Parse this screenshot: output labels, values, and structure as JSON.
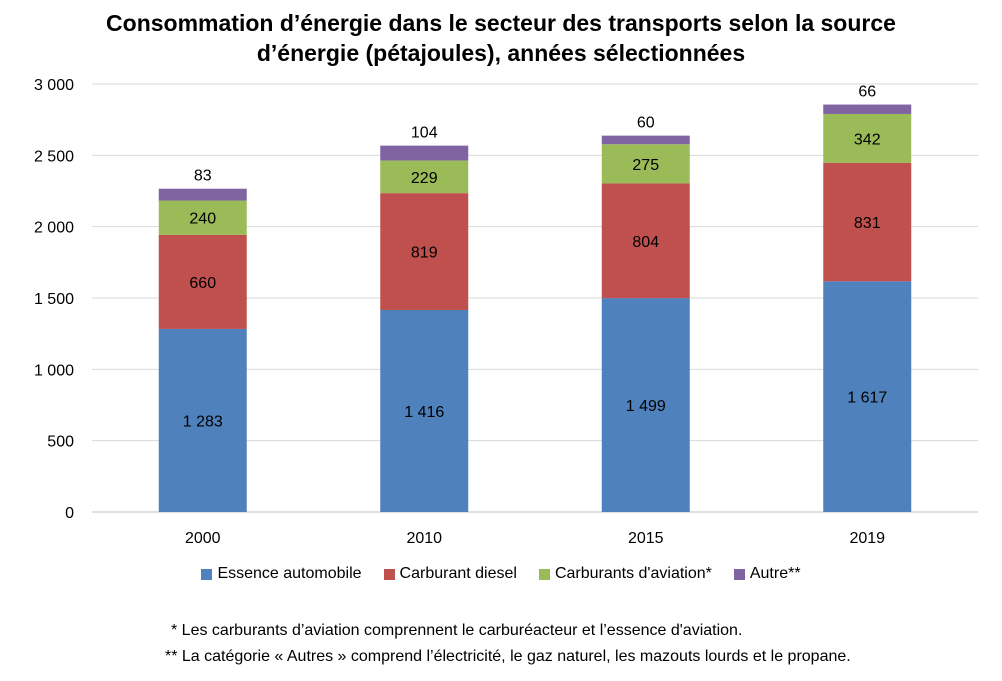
{
  "chart_data": {
    "type": "bar",
    "stacked": true,
    "title_lines": [
      "Consommation  d’énergie dans le secteur des transports selon la source",
      "d’énergie (pétajoules), années sélectionnées"
    ],
    "categories": [
      "2000",
      "2010",
      "2015",
      "2019"
    ],
    "series": [
      {
        "name": "Essence automobile",
        "color": "#4F81BD",
        "values": [
          1283,
          1416,
          1499,
          1617
        ],
        "labels": [
          "1 283",
          "1 416",
          "1 499",
          "1 617"
        ]
      },
      {
        "name": "Carburant diesel",
        "color": "#C0504D",
        "values": [
          660,
          819,
          804,
          831
        ],
        "labels": [
          "660",
          "819",
          "804",
          "831"
        ]
      },
      {
        "name": "Carburants d'aviation*",
        "color": "#9BBB59",
        "values": [
          240,
          229,
          275,
          342
        ],
        "labels": [
          "240",
          "229",
          "275",
          "342"
        ]
      },
      {
        "name": "Autre**",
        "color": "#8064A2",
        "values": [
          83,
          104,
          60,
          66
        ],
        "labels": [
          "83",
          "104",
          "60",
          "66"
        ]
      }
    ],
    "ylim": [
      0,
      3000
    ],
    "yticks": [
      0,
      500,
      1000,
      1500,
      2000,
      2500,
      3000
    ],
    "ytick_labels": [
      "0",
      "500",
      "1 000",
      "1 500",
      "2 000",
      "2 500",
      "3 000"
    ],
    "grid": true,
    "legend_position": "bottom",
    "xlabel": "",
    "ylabel": ""
  },
  "footnotes": {
    "note1": "* Les carburants d’aviation comprennent le carburéacteur et l’essence d'aviation.",
    "note2": "** La catégorie « Autres » comprend l’électricité,  le gaz naturel, les mazouts lourds et le propane."
  }
}
